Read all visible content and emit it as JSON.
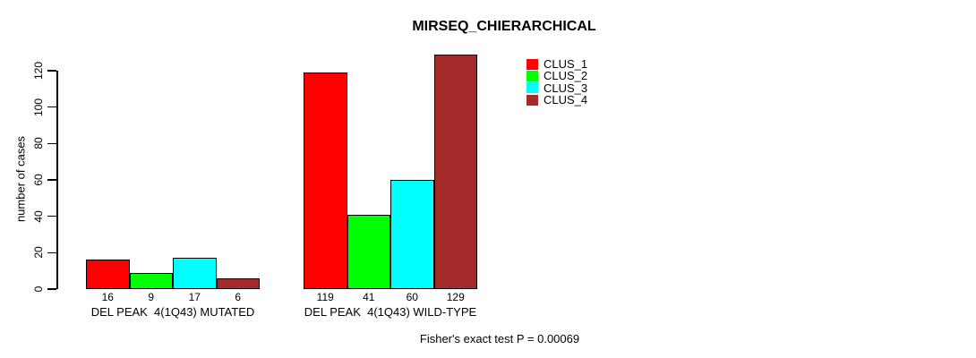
{
  "chart_data": {
    "type": "bar",
    "title": "MIRSEQ_CHIERARCHICAL",
    "ylabel": "number of cases",
    "xlabel": "",
    "footer": "Fisher's exact test P = 0.00069",
    "categories": [
      "DEL PEAK  4(1Q43) MUTATED",
      "DEL PEAK  4(1Q43) WILD-TYPE"
    ],
    "series": [
      {
        "name": "CLUS_1",
        "color": "#FF0000",
        "values": [
          16,
          119
        ]
      },
      {
        "name": "CLUS_2",
        "color": "#00FF00",
        "values": [
          9,
          41
        ]
      },
      {
        "name": "CLUS_3",
        "color": "#00FFFF",
        "values": [
          17,
          60
        ]
      },
      {
        "name": "CLUS_4",
        "color": "#A52A2A",
        "values": [
          6,
          129
        ]
      }
    ],
    "bar_value_labels": [
      [
        16,
        9,
        17,
        6
      ],
      [
        119,
        41,
        60,
        129
      ]
    ],
    "yticks": [
      0,
      20,
      40,
      60,
      80,
      100,
      120
    ],
    "ylim": [
      0,
      130
    ],
    "grid": false,
    "legend_position": "top-right",
    "bar_border_color": "#000000",
    "text_color": "#000000",
    "background_color": "#FFFFFF"
  }
}
